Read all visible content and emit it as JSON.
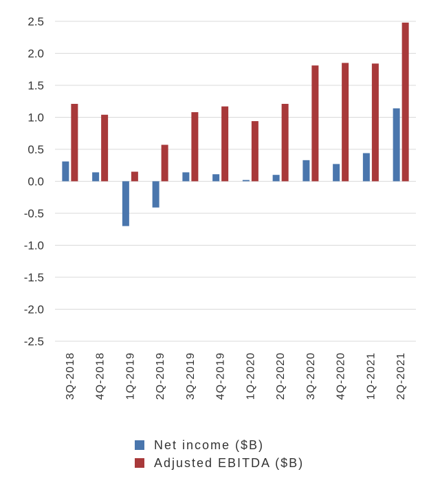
{
  "chart_data": {
    "type": "bar",
    "categories": [
      "3Q-2018",
      "4Q-2018",
      "1Q-2019",
      "2Q-2019",
      "3Q-2019",
      "4Q-2019",
      "1Q-2020",
      "2Q-2020",
      "3Q-2020",
      "4Q-2020",
      "1Q-2021",
      "2Q-2021"
    ],
    "series": [
      {
        "name": "Net income ($B)",
        "color": "#4a76ad",
        "values": [
          0.31,
          0.14,
          -0.7,
          -0.41,
          0.14,
          0.11,
          0.02,
          0.1,
          0.33,
          0.27,
          0.44,
          1.14
        ]
      },
      {
        "name": "Adjusted EBITDA ($B)",
        "color": "#a8393a",
        "values": [
          1.21,
          1.04,
          0.15,
          0.57,
          1.08,
          1.17,
          0.94,
          1.21,
          1.81,
          1.85,
          1.84,
          2.48
        ]
      }
    ],
    "yticks": [
      "2.5",
      "2.0",
      "1.5",
      "1.0",
      "0.5",
      "0.0",
      "-0.5",
      "-1.0",
      "-1.5",
      "-2.0",
      "-2.5"
    ],
    "ylim": [
      -2.5,
      2.5
    ],
    "grid": true,
    "legend_position": "bottom"
  }
}
